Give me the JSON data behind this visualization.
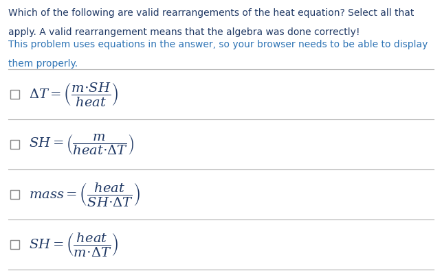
{
  "background_color": "#ffffff",
  "figsize": [
    6.43,
    3.98
  ],
  "dpi": 100,
  "header_line1": "Which of the following are valid rearrangements of the heat equation? Select all that",
  "header_line2": "apply. A valid rearrangement means that the algebra was done correctly!",
  "subheader_line1": "This problem uses equations in the answer, so your browser needs to be able to display",
  "subheader_line2": "them properly.",
  "header_color": "#1f3864",
  "subheader_color": "#2e74b5",
  "equation_color": "#1f3864",
  "divider_color": "#b0b0b0",
  "checkbox_color": "#888888",
  "header_fontsize": 10.0,
  "subheader_fontsize": 10.0,
  "eq_fontsize": 14,
  "equations": [
    "$\\Delta T = \\left(\\dfrac{m{\\cdot}SH}{heat}\\right)$",
    "$SH = \\left(\\dfrac{m}{heat{\\cdot}\\Delta T}\\right)$",
    "$mass = \\left(\\dfrac{heat}{SH{\\cdot}\\Delta T}\\right)$",
    "$SH = \\left(\\dfrac{heat}{m{\\cdot}\\Delta T}\\right)$"
  ]
}
